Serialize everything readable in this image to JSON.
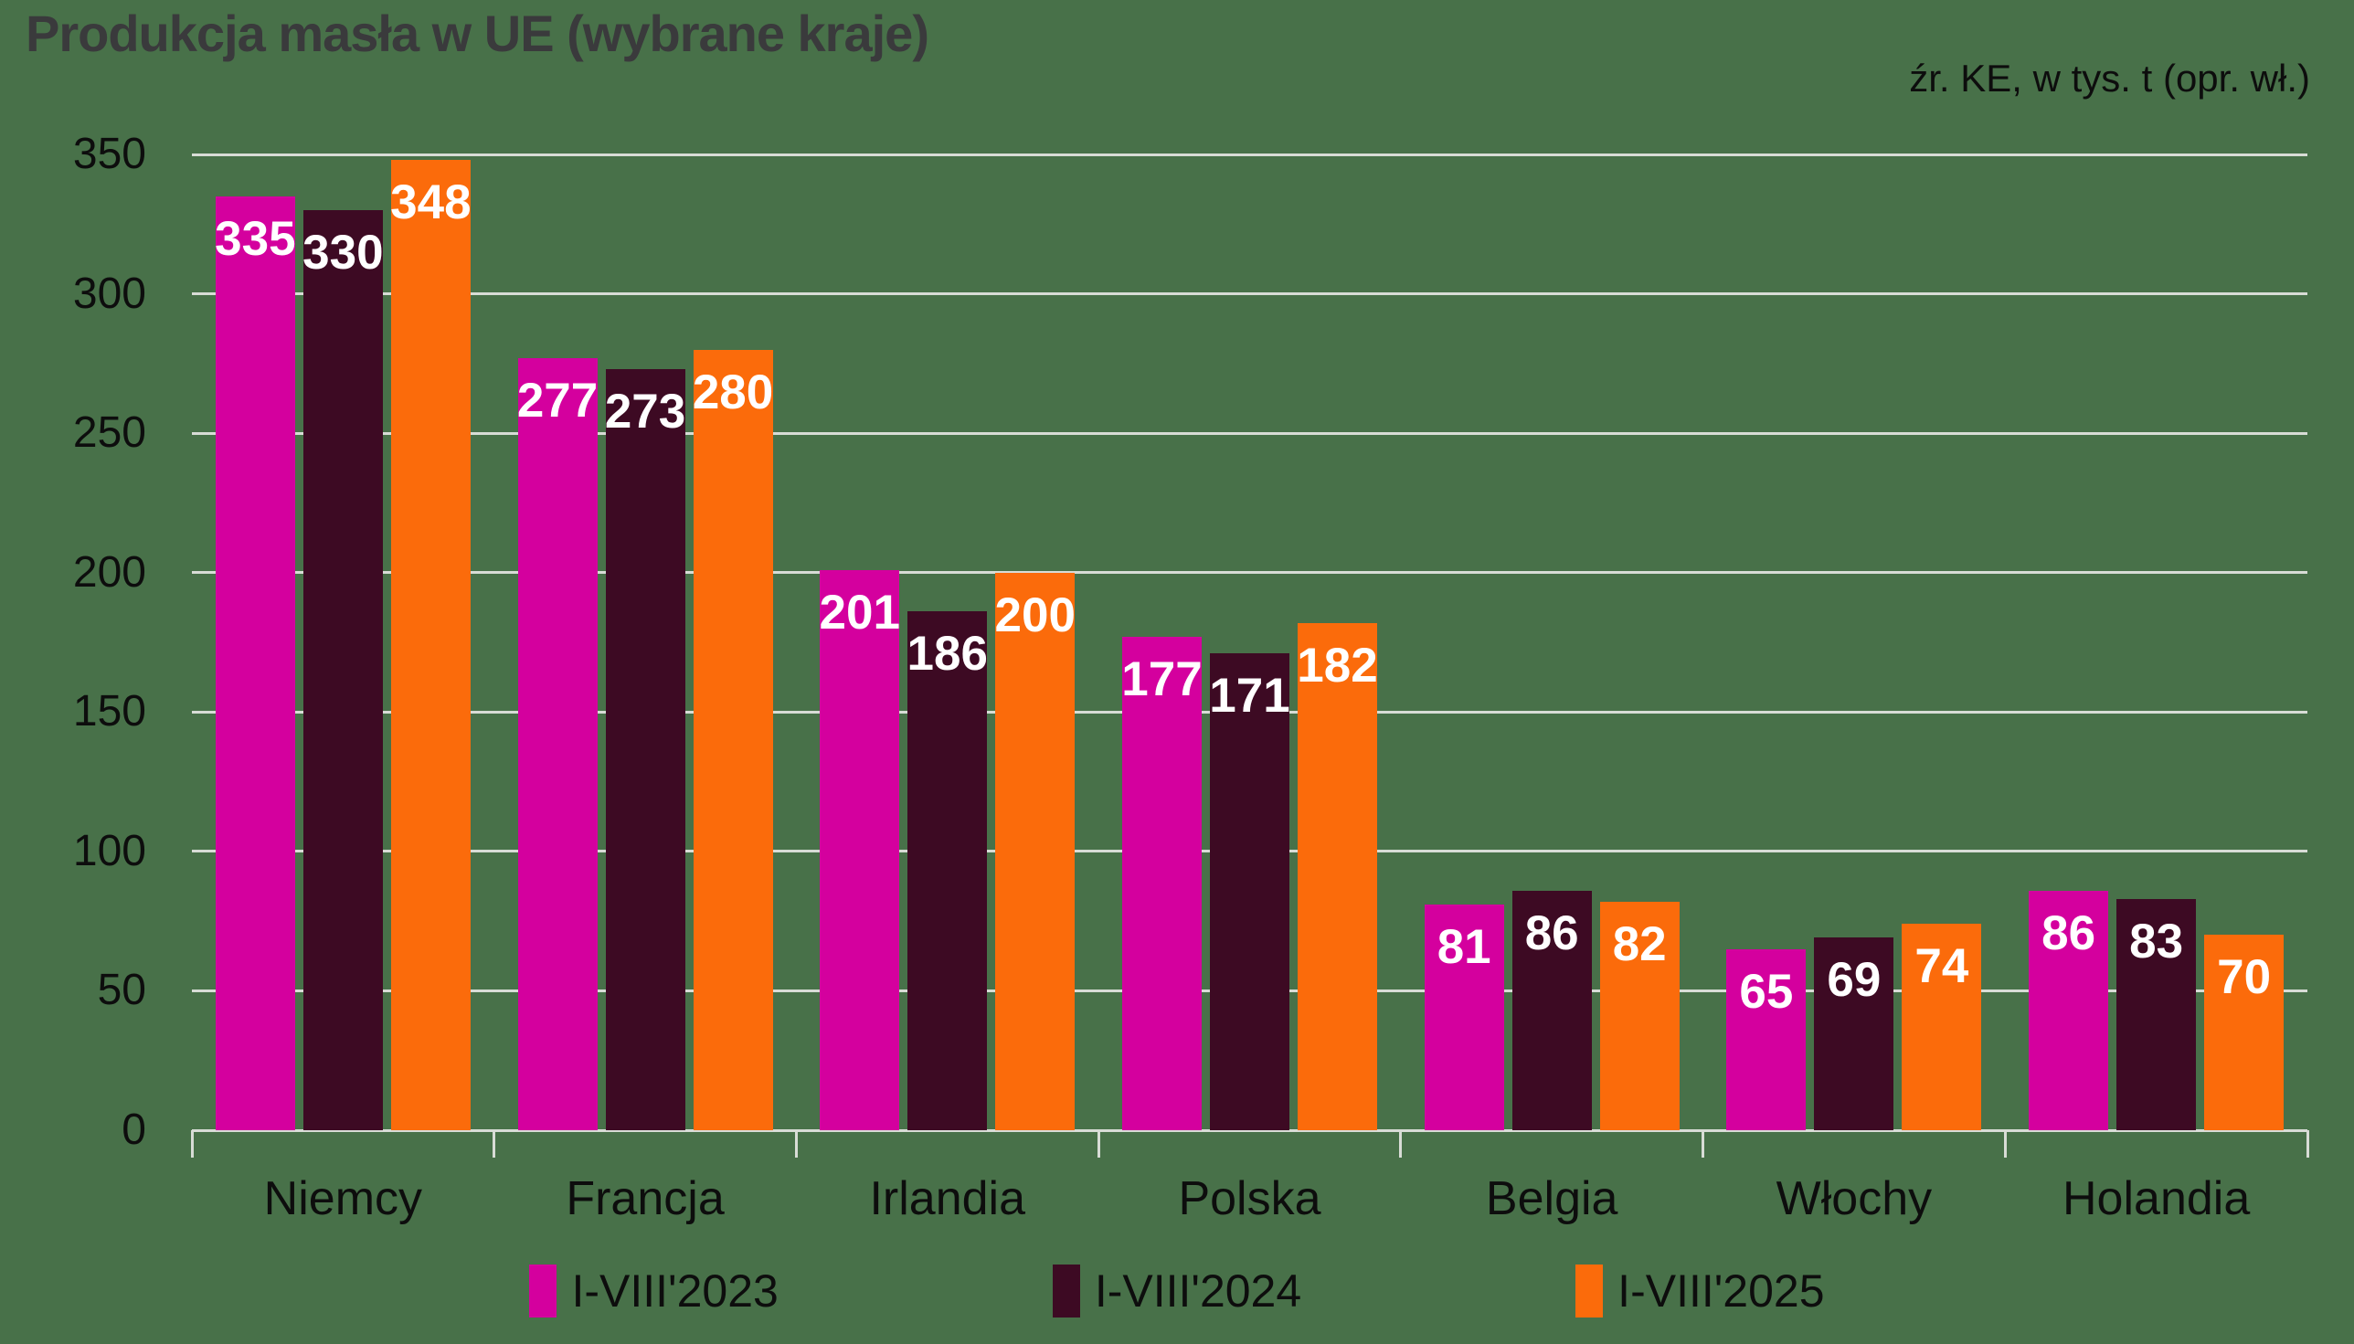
{
  "colors": {
    "background": "#487149",
    "gridline": "#d8dcd6",
    "title_text": "#3a3a3c",
    "axis_text": "#0d0d0d",
    "value_label_text": "#ffffff"
  },
  "chart_data": {
    "type": "bar",
    "title": "Produkcja masła w UE (wybrane kraje)",
    "source_note": "źr. KE, w tys. t (opr. wł.)",
    "categories": [
      "Niemcy",
      "Francja",
      "Irlandia",
      "Polska",
      "Belgia",
      "Włochy",
      "Holandia"
    ],
    "series": [
      {
        "name": "I-VIII'2023",
        "color": "#d4009e",
        "values": [
          335,
          277,
          201,
          177,
          81,
          65,
          86
        ]
      },
      {
        "name": "I-VIII'2024",
        "color": "#3d0a23",
        "values": [
          330,
          273,
          186,
          171,
          86,
          69,
          83
        ]
      },
      {
        "name": "I-VIII'2025",
        "color": "#fb6b0b",
        "values": [
          348,
          280,
          200,
          182,
          82,
          74,
          70
        ]
      }
    ],
    "ylim": [
      0,
      350
    ],
    "yticks": [
      0,
      50,
      100,
      150,
      200,
      250,
      300,
      350
    ],
    "grid": "horizontal gridlines on",
    "legend_position": "bottom",
    "value_labels": "inside bar top, white bold"
  }
}
